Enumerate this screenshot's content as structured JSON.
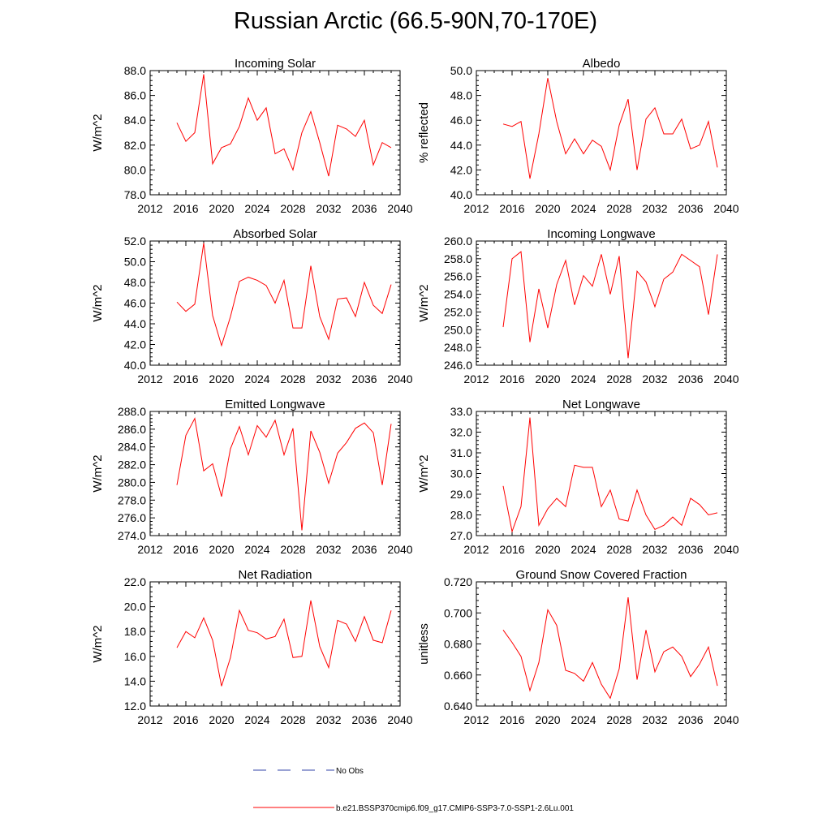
{
  "title": "Russian Arctic (66.5-90N,70-170E)",
  "legend": {
    "obs_label": "No Obs",
    "obs_color": "#3344aa",
    "model_label": "b.e21.BSSP370cmip6.f09_g17.CMIP6-SSP3-7.0-SSP1-2.6Lu.001",
    "model_color": "#ff0000"
  },
  "chart_data": [
    {
      "type": "line",
      "title": "Incoming Solar",
      "ylabel": "W/m^2",
      "xlim": [
        2012,
        2040
      ],
      "x_ticks": [
        2012,
        2016,
        2020,
        2024,
        2028,
        2032,
        2036,
        2040
      ],
      "ylim": [
        78,
        88
      ],
      "y_ticks": [
        "78.0",
        "80.0",
        "82.0",
        "84.0",
        "86.0",
        "88.0"
      ],
      "x": [
        2015,
        2016,
        2017,
        2018,
        2019,
        2020,
        2021,
        2022,
        2023,
        2024,
        2025,
        2026,
        2027,
        2028,
        2029,
        2030,
        2031,
        2032,
        2033,
        2034,
        2035,
        2036,
        2037,
        2038,
        2039
      ],
      "series": [
        {
          "values": [
            83.8,
            82.3,
            83.0,
            87.7,
            80.5,
            81.8,
            82.1,
            83.5,
            85.8,
            84.0,
            85.0,
            81.3,
            81.7,
            80.0,
            83.0,
            84.7,
            82.2,
            79.5,
            83.6,
            83.3,
            82.7,
            84.0,
            80.4,
            82.2,
            81.8
          ]
        }
      ]
    },
    {
      "type": "line",
      "title": "Albedo",
      "ylabel": "% reflected",
      "xlim": [
        2012,
        2040
      ],
      "x_ticks": [
        2012,
        2016,
        2020,
        2024,
        2028,
        2032,
        2036,
        2040
      ],
      "ylim": [
        40,
        50
      ],
      "y_ticks": [
        "40.0",
        "42.0",
        "44.0",
        "46.0",
        "48.0",
        "50.0"
      ],
      "x": [
        2015,
        2016,
        2017,
        2018,
        2019,
        2020,
        2021,
        2022,
        2023,
        2024,
        2025,
        2026,
        2027,
        2028,
        2029,
        2030,
        2031,
        2032,
        2033,
        2034,
        2035,
        2036,
        2037,
        2038,
        2039
      ],
      "series": [
        {
          "values": [
            45.7,
            45.5,
            45.9,
            41.3,
            44.9,
            49.4,
            45.9,
            43.3,
            44.5,
            43.3,
            44.4,
            43.9,
            42.0,
            45.6,
            47.7,
            42.0,
            46.1,
            47.0,
            44.9,
            44.9,
            46.1,
            43.7,
            44.0,
            45.9,
            42.2
          ]
        }
      ]
    },
    {
      "type": "line",
      "title": "Absorbed Solar",
      "ylabel": "W/m^2",
      "xlim": [
        2012,
        2040
      ],
      "x_ticks": [
        2012,
        2016,
        2020,
        2024,
        2028,
        2032,
        2036,
        2040
      ],
      "ylim": [
        40,
        52
      ],
      "y_ticks": [
        "40.0",
        "42.0",
        "44.0",
        "46.0",
        "48.0",
        "50.0",
        "52.0"
      ],
      "x": [
        2015,
        2016,
        2017,
        2018,
        2019,
        2020,
        2021,
        2022,
        2023,
        2024,
        2025,
        2026,
        2027,
        2028,
        2029,
        2030,
        2031,
        2032,
        2033,
        2034,
        2035,
        2036,
        2037,
        2038,
        2039
      ],
      "series": [
        {
          "values": [
            46.1,
            45.2,
            45.9,
            51.8,
            44.8,
            41.9,
            44.7,
            48.1,
            48.5,
            48.2,
            47.7,
            46.0,
            48.2,
            43.6,
            43.6,
            49.6,
            44.7,
            42.5,
            46.4,
            46.5,
            44.7,
            48.0,
            45.8,
            45.0,
            47.8
          ]
        }
      ]
    },
    {
      "type": "line",
      "title": "Incoming Longwave",
      "ylabel": "W/m^2",
      "xlim": [
        2012,
        2040
      ],
      "x_ticks": [
        2012,
        2016,
        2020,
        2024,
        2028,
        2032,
        2036,
        2040
      ],
      "ylim": [
        246,
        260
      ],
      "y_ticks": [
        "246.0",
        "248.0",
        "250.0",
        "252.0",
        "254.0",
        "256.0",
        "258.0",
        "260.0"
      ],
      "x": [
        2015,
        2016,
        2017,
        2018,
        2019,
        2020,
        2021,
        2022,
        2023,
        2024,
        2025,
        2026,
        2027,
        2028,
        2029,
        2030,
        2031,
        2032,
        2033,
        2034,
        2035,
        2036,
        2037,
        2038,
        2039
      ],
      "series": [
        {
          "values": [
            250.3,
            258.0,
            258.8,
            248.6,
            254.6,
            250.2,
            255.1,
            257.8,
            252.8,
            256.1,
            254.9,
            258.5,
            254.0,
            258.3,
            246.8,
            256.6,
            255.4,
            252.6,
            255.7,
            256.5,
            258.5,
            257.8,
            257.1,
            251.7,
            258.5
          ]
        }
      ]
    },
    {
      "type": "line",
      "title": "Emitted Longwave",
      "ylabel": "W/m^2",
      "xlim": [
        2012,
        2040
      ],
      "x_ticks": [
        2012,
        2016,
        2020,
        2024,
        2028,
        2032,
        2036,
        2040
      ],
      "ylim": [
        274,
        288
      ],
      "y_ticks": [
        "274.0",
        "276.0",
        "278.0",
        "280.0",
        "282.0",
        "284.0",
        "286.0",
        "288.0"
      ],
      "x": [
        2015,
        2016,
        2017,
        2018,
        2019,
        2020,
        2021,
        2022,
        2023,
        2024,
        2025,
        2026,
        2027,
        2028,
        2029,
        2030,
        2031,
        2032,
        2033,
        2034,
        2035,
        2036,
        2037,
        2038,
        2039
      ],
      "series": [
        {
          "values": [
            279.7,
            285.3,
            287.2,
            281.3,
            282.1,
            278.4,
            283.8,
            286.3,
            283.1,
            286.4,
            285.1,
            287.0,
            283.1,
            286.1,
            274.6,
            285.8,
            283.4,
            279.9,
            283.3,
            284.5,
            286.1,
            286.7,
            285.6,
            279.7,
            286.6
          ]
        }
      ]
    },
    {
      "type": "line",
      "title": "Net Longwave",
      "ylabel": "W/m^2",
      "xlim": [
        2012,
        2040
      ],
      "x_ticks": [
        2012,
        2016,
        2020,
        2024,
        2028,
        2032,
        2036,
        2040
      ],
      "ylim": [
        27,
        33
      ],
      "y_ticks": [
        "27.0",
        "28.0",
        "29.0",
        "30.0",
        "31.0",
        "32.0",
        "33.0"
      ],
      "x": [
        2015,
        2016,
        2017,
        2018,
        2019,
        2020,
        2021,
        2022,
        2023,
        2024,
        2025,
        2026,
        2027,
        2028,
        2029,
        2030,
        2031,
        2032,
        2033,
        2034,
        2035,
        2036,
        2037,
        2038,
        2039
      ],
      "series": [
        {
          "values": [
            29.4,
            27.2,
            28.4,
            32.7,
            27.5,
            28.3,
            28.8,
            28.4,
            30.4,
            30.3,
            30.3,
            28.4,
            29.2,
            27.8,
            27.7,
            29.2,
            28.0,
            27.3,
            27.5,
            27.9,
            27.5,
            28.8,
            28.5,
            28.0,
            28.1
          ]
        }
      ]
    },
    {
      "type": "line",
      "title": "Net Radiation",
      "ylabel": "W/m^2",
      "xlim": [
        2012,
        2040
      ],
      "x_ticks": [
        2012,
        2016,
        2020,
        2024,
        2028,
        2032,
        2036,
        2040
      ],
      "ylim": [
        12,
        22
      ],
      "y_ticks": [
        "12.0",
        "14.0",
        "16.0",
        "18.0",
        "20.0",
        "22.0"
      ],
      "x": [
        2015,
        2016,
        2017,
        2018,
        2019,
        2020,
        2021,
        2022,
        2023,
        2024,
        2025,
        2026,
        2027,
        2028,
        2029,
        2030,
        2031,
        2032,
        2033,
        2034,
        2035,
        2036,
        2037,
        2038,
        2039
      ],
      "series": [
        {
          "values": [
            16.7,
            18.0,
            17.5,
            19.1,
            17.3,
            13.6,
            15.9,
            19.7,
            18.1,
            17.9,
            17.4,
            17.6,
            19.0,
            15.9,
            16.0,
            20.5,
            16.8,
            15.1,
            18.9,
            18.6,
            17.2,
            19.2,
            17.3,
            17.1,
            19.7
          ]
        }
      ]
    },
    {
      "type": "line",
      "title": "Ground Snow Covered Fraction",
      "ylabel": "unitless",
      "xlim": [
        2012,
        2040
      ],
      "x_ticks": [
        2012,
        2016,
        2020,
        2024,
        2028,
        2032,
        2036,
        2040
      ],
      "ylim": [
        0.64,
        0.72
      ],
      "y_ticks": [
        "0.640",
        "0.660",
        "0.680",
        "0.700",
        "0.720"
      ],
      "x": [
        2015,
        2016,
        2017,
        2018,
        2019,
        2020,
        2021,
        2022,
        2023,
        2024,
        2025,
        2026,
        2027,
        2028,
        2029,
        2030,
        2031,
        2032,
        2033,
        2034,
        2035,
        2036,
        2037,
        2038,
        2039
      ],
      "series": [
        {
          "values": [
            0.689,
            0.681,
            0.672,
            0.65,
            0.668,
            0.702,
            0.692,
            0.663,
            0.661,
            0.656,
            0.668,
            0.654,
            0.645,
            0.664,
            0.71,
            0.657,
            0.689,
            0.662,
            0.675,
            0.678,
            0.672,
            0.659,
            0.667,
            0.678,
            0.653
          ]
        }
      ]
    }
  ]
}
